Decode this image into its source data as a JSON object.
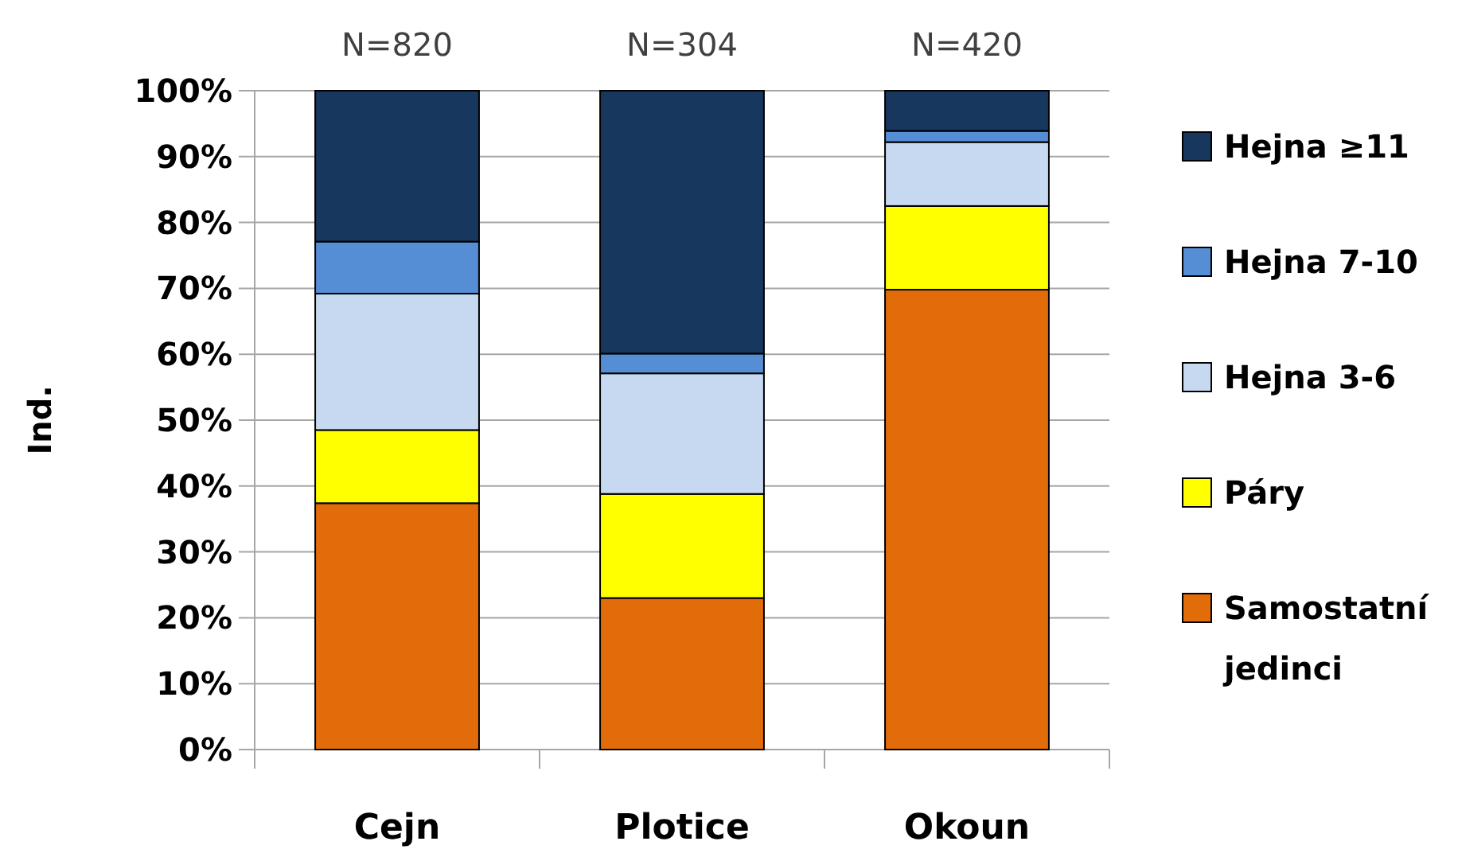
{
  "chart_data": {
    "type": "bar",
    "stacked": true,
    "ylabel": "Ind.",
    "categories": [
      "Cejn",
      "Plotice",
      "Okoun"
    ],
    "series": [
      {
        "name": "Samostatní jedinci",
        "color": "#e36c0a",
        "values": [
          37.4,
          23.0,
          69.8
        ]
      },
      {
        "name": "Páry",
        "color": "#ffff00",
        "values": [
          11.1,
          15.8,
          12.7
        ]
      },
      {
        "name": "Hejna 3-6",
        "color": "#c6d9f1",
        "values": [
          20.7,
          18.3,
          9.7
        ]
      },
      {
        "name": "Hejna 7-10",
        "color": "#558ed5",
        "values": [
          7.9,
          3.0,
          1.7
        ]
      },
      {
        "name": "Hejna ≥11",
        "color": "#17375e",
        "values": [
          22.9,
          39.9,
          6.1
        ]
      }
    ],
    "ylim": [
      0,
      100
    ],
    "yticks": [
      {
        "value": 0,
        "label": "0%"
      },
      {
        "value": 10,
        "label": "10%"
      },
      {
        "value": 20,
        "label": "20%"
      },
      {
        "value": 30,
        "label": "30%"
      },
      {
        "value": 40,
        "label": "40%"
      },
      {
        "value": 50,
        "label": "50%"
      },
      {
        "value": 60,
        "label": "60%"
      },
      {
        "value": 70,
        "label": "70%"
      },
      {
        "value": 80,
        "label": "80%"
      },
      {
        "value": 90,
        "label": "90%"
      },
      {
        "value": 100,
        "label": "100%"
      }
    ],
    "grid": "y",
    "legend": "right",
    "annotations": [
      {
        "text": "N=820",
        "x": "Cejn",
        "y": 100
      },
      {
        "text": "N=304",
        "x": "Plotice",
        "y": 100
      },
      {
        "text": "N=420",
        "x": "Okoun",
        "y": 100
      }
    ]
  }
}
